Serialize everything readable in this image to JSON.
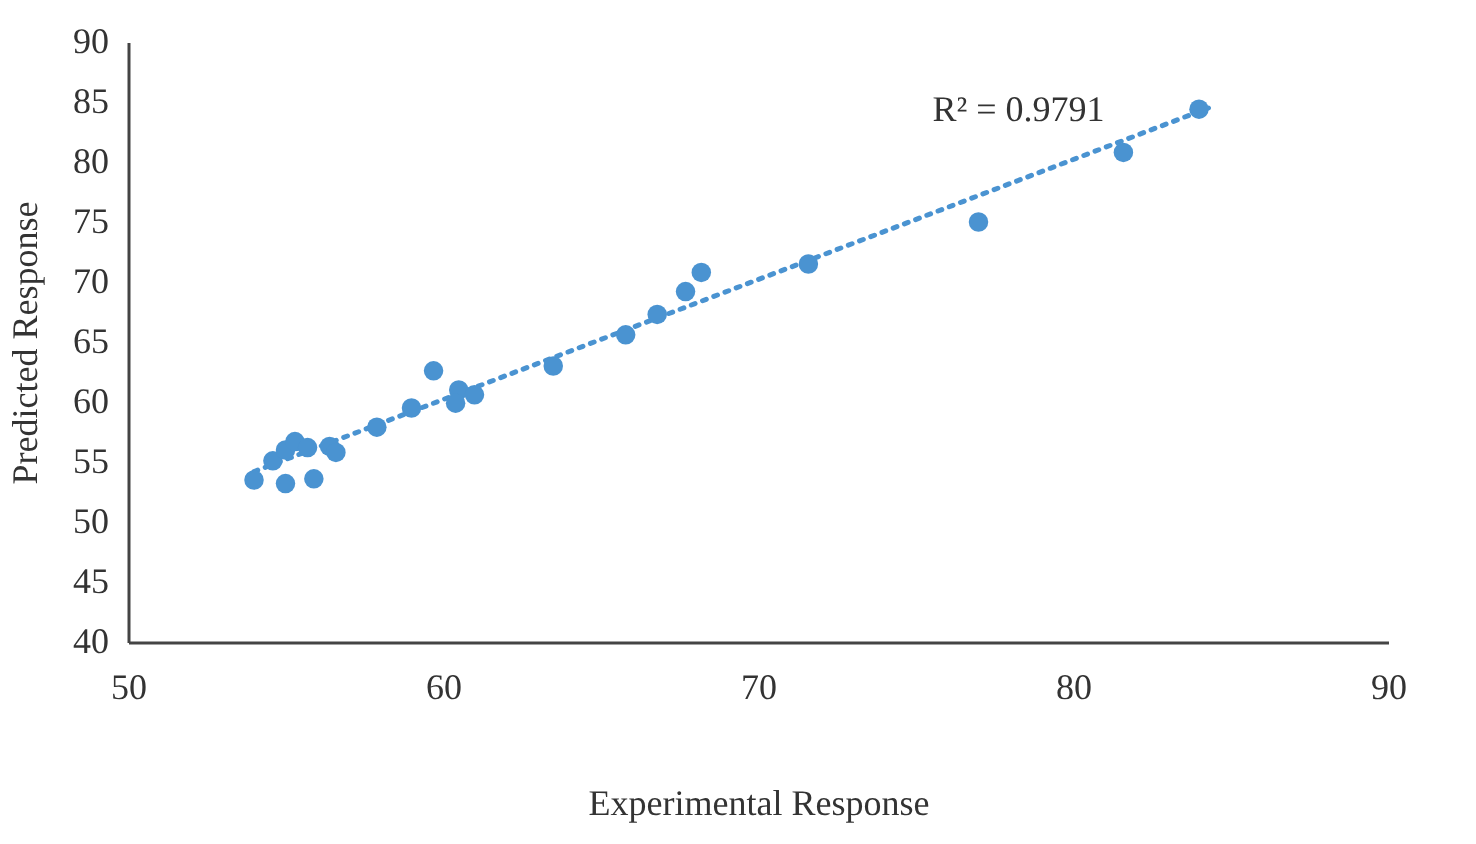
{
  "chart_data": {
    "type": "scatter",
    "xlabel": "Experimental Response",
    "ylabel": "Predicted Response",
    "xlim": [
      50,
      90
    ],
    "xticks": [
      50,
      60,
      70,
      80,
      90
    ],
    "ylim": [
      40,
      90
    ],
    "yticks": [
      40,
      45,
      50,
      55,
      60,
      65,
      70,
      75,
      80,
      85,
      90
    ],
    "grid": false,
    "series": [
      {
        "color": "#4a93d1",
        "marker": "circle",
        "x": [
          54.0,
          54.6,
          55.0,
          55.0,
          55.3,
          55.7,
          55.9,
          56.4,
          56.6,
          57.9,
          59.0,
          59.7,
          60.5,
          60.4,
          61.0,
          63.5,
          65.8,
          66.8,
          67.7,
          68.2,
          71.6,
          77.0,
          81.6,
          84.0
        ],
        "values": [
          53.5,
          55.1,
          53.2,
          56.0,
          56.7,
          56.2,
          53.6,
          56.3,
          55.8,
          57.9,
          59.5,
          62.6,
          61.0,
          59.9,
          60.6,
          63.0,
          65.6,
          67.3,
          69.2,
          70.8,
          71.5,
          75.0,
          80.8,
          84.4
        ]
      },
      {
        "color": "#4a93d1",
        "type": "line",
        "marker": "none",
        "line_style": "dotted",
        "x": [
          54.0,
          84.3
        ],
        "values": [
          54.2,
          84.5
        ]
      }
    ],
    "annotations": [
      "R² = 0.9791"
    ]
  }
}
